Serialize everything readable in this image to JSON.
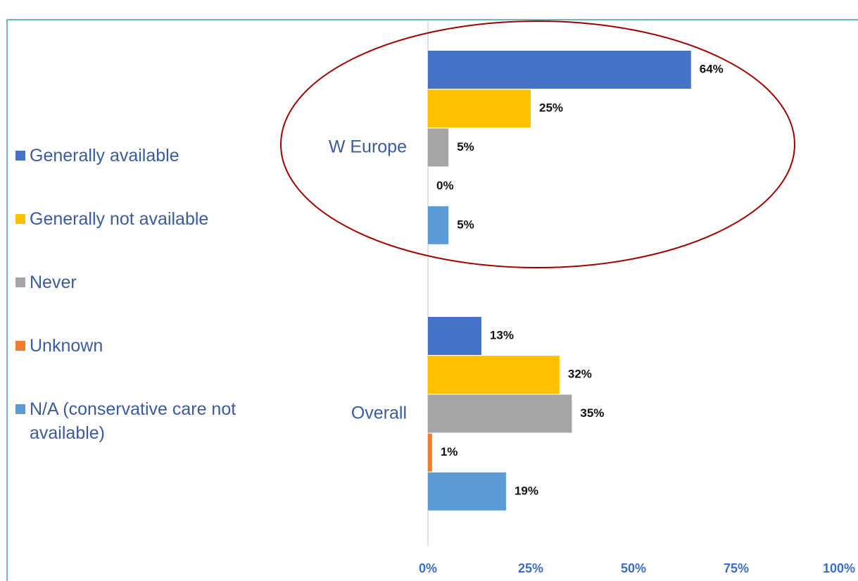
{
  "chart_data": {
    "type": "bar",
    "orientation": "horizontal",
    "categories": [
      "W Europe",
      "Overall"
    ],
    "series": [
      {
        "name": "Generally available",
        "color": "#4472c4",
        "values": [
          64,
          13
        ],
        "value_labels": [
          "64%",
          "13%"
        ]
      },
      {
        "name": "Generally not available",
        "color": "#ffc000",
        "values": [
          25,
          32
        ],
        "value_labels": [
          "25%",
          "32%"
        ]
      },
      {
        "name": "Never",
        "color": "#a5a5a5",
        "values": [
          5,
          35
        ],
        "value_labels": [
          "5%",
          "35%"
        ]
      },
      {
        "name": "Unknown",
        "color": "#ed7d31",
        "values": [
          0,
          1
        ],
        "value_labels": [
          "0%",
          "1%"
        ]
      },
      {
        "name": "N/A (conservative care not available)",
        "color": "#5b9bd5",
        "values": [
          5,
          19
        ],
        "value_labels": [
          "5%",
          "19%"
        ]
      }
    ],
    "xlim": [
      0,
      100
    ],
    "xticks": [
      {
        "value": 0,
        "label": "0%"
      },
      {
        "value": 25,
        "label": "25%"
      },
      {
        "value": 50,
        "label": "50%"
      },
      {
        "value": 75,
        "label": "75%"
      },
      {
        "value": 100,
        "label": "100%"
      }
    ],
    "grid": false,
    "legend": "left"
  }
}
